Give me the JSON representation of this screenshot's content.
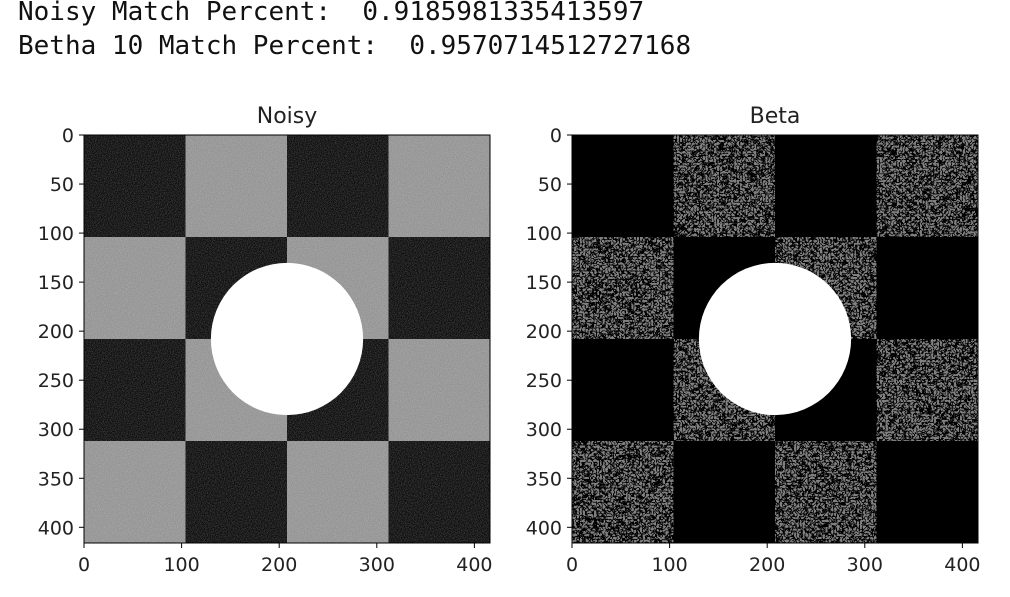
{
  "output": {
    "line1": "Noisy Match Percent:  0.9185981335413597",
    "line2": "Betha 10 Match Percent:  0.9570714512727168"
  },
  "chart_data": [
    {
      "type": "heatmap",
      "title": "Noisy",
      "colormap": "gray",
      "xlim": [
        0,
        416
      ],
      "ylim": [
        416,
        0
      ],
      "xticks": [
        0,
        100,
        200,
        300,
        400
      ],
      "yticks": [
        0,
        50,
        100,
        150,
        200,
        250,
        300,
        350,
        400
      ],
      "checker_block_size": 104,
      "checker_grid": [
        [
          0,
          1,
          0,
          1
        ],
        [
          1,
          0,
          1,
          0
        ],
        [
          0,
          1,
          0,
          1
        ],
        [
          1,
          0,
          1,
          0
        ]
      ],
      "circle": {
        "center": [
          208,
          208
        ],
        "radius": 78,
        "value": 1.0
      },
      "levels": {
        "dark": "#050505",
        "light": "#8f8f8f",
        "circle": "#ffffff"
      },
      "noise": "gaussian"
    },
    {
      "type": "heatmap",
      "title": "Beta",
      "colormap": "gray",
      "xlim": [
        0,
        416
      ],
      "ylim": [
        416,
        0
      ],
      "xticks": [
        0,
        100,
        200,
        300,
        400
      ],
      "yticks": [
        0,
        50,
        100,
        150,
        200,
        250,
        300,
        350,
        400
      ],
      "checker_block_size": 104,
      "checker_grid": [
        [
          0,
          1,
          0,
          1
        ],
        [
          1,
          0,
          1,
          0
        ],
        [
          0,
          1,
          0,
          1
        ],
        [
          1,
          0,
          1,
          0
        ]
      ],
      "circle": {
        "center": [
          208,
          208
        ],
        "radius": 78,
        "value": 1.0
      },
      "levels": {
        "dark": "#000000",
        "light": "#808080",
        "circle": "#ffffff"
      },
      "noise": "sparse dark speckles"
    }
  ]
}
